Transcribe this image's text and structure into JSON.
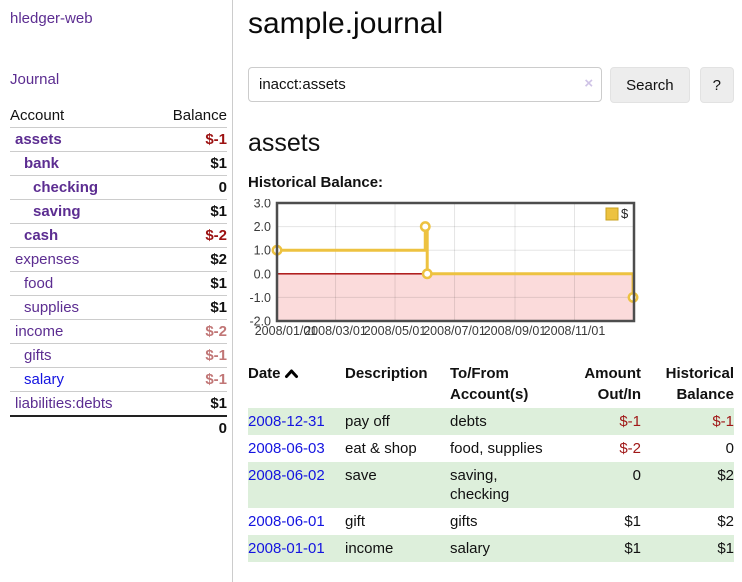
{
  "app": {
    "title": "hledger-web"
  },
  "sidebar": {
    "journal_link": "Journal",
    "accounts": {
      "header": {
        "account": "Account",
        "balance": "Balance"
      },
      "rows": [
        {
          "name": "assets",
          "balance": "$-1"
        },
        {
          "name": "bank",
          "balance": "$1"
        },
        {
          "name": "checking",
          "balance": "0"
        },
        {
          "name": "saving",
          "balance": "$1"
        },
        {
          "name": "cash",
          "balance": "$-2"
        },
        {
          "name": "expenses",
          "balance": "$2"
        },
        {
          "name": "food",
          "balance": "$1"
        },
        {
          "name": "supplies",
          "balance": "$1"
        },
        {
          "name": "income",
          "balance": "$-2"
        },
        {
          "name": "gifts",
          "balance": "$-1"
        },
        {
          "name": "salary",
          "balance": "$-1"
        },
        {
          "name": "liabilities:debts",
          "balance": "$1"
        }
      ],
      "total": "0"
    }
  },
  "main": {
    "title": "sample.journal",
    "search": {
      "query": "inacct:assets",
      "clear_label": "×",
      "button": "Search",
      "help": "?"
    },
    "heading": "assets",
    "chart_label": "Historical Balance:"
  },
  "chart_data": {
    "type": "line",
    "step": true,
    "title": "Historical Balance",
    "series": [
      {
        "name": "$",
        "color": "#edc240",
        "points": [
          [
            "2008-01-01",
            1
          ],
          [
            "2008-06-01",
            2
          ],
          [
            "2008-06-03",
            0
          ],
          [
            "2008-12-31",
            -1
          ]
        ]
      }
    ],
    "x_range": [
      "2008-01-01",
      "2009-01-01"
    ],
    "ylim": [
      -2,
      3
    ],
    "y_ticks": [
      {
        "value": 3,
        "label": "3.0"
      },
      {
        "value": 2,
        "label": "2.0"
      },
      {
        "value": 1,
        "label": "1.0"
      },
      {
        "value": 0,
        "label": "0.0"
      },
      {
        "value": -1,
        "label": "-1.0"
      },
      {
        "value": -2,
        "label": "-2.0"
      }
    ],
    "x_ticks": [
      {
        "date": "2008-01-01",
        "label": "2008/01/01"
      },
      {
        "date": "2008-03-01",
        "label": "2008/03/01"
      },
      {
        "date": "2008-05-01",
        "label": "2008/05/01"
      },
      {
        "date": "2008-07-01",
        "label": "2008/07/01"
      },
      {
        "date": "2008-09-01",
        "label": "2008/09/01"
      },
      {
        "date": "2008-11-01",
        "label": "2008/11/01"
      }
    ],
    "negative_region_color": "#fbdbdb",
    "zero_line_color": "#a40000",
    "grid": true,
    "legend_position": "top-right"
  },
  "register": {
    "headers": {
      "date": "Date",
      "description": "Description",
      "account_line1": "To/From",
      "account_line2": "Account(s)",
      "amount_line1": "Amount",
      "amount_line2": "Out/In",
      "balance_line1": "Historical",
      "balance_line2": "Balance"
    },
    "rows": [
      {
        "date": "2008-12-31",
        "description": "pay off",
        "accounts": [
          "debts"
        ],
        "amount": "$-1",
        "balance": "$-1"
      },
      {
        "date": "2008-06-03",
        "description": "eat & shop",
        "accounts": [
          "food, supplies"
        ],
        "amount": "$-2",
        "balance": "0"
      },
      {
        "date": "2008-06-02",
        "description": "save",
        "accounts": [
          "saving,",
          "checking"
        ],
        "amount": "0",
        "balance": "$2"
      },
      {
        "date": "2008-06-01",
        "description": "gift",
        "accounts": [
          "gifts"
        ],
        "amount": "$1",
        "balance": "$2"
      },
      {
        "date": "2008-01-01",
        "description": "income",
        "accounts": [
          "salary"
        ],
        "amount": "$1",
        "balance": "$1"
      }
    ]
  }
}
